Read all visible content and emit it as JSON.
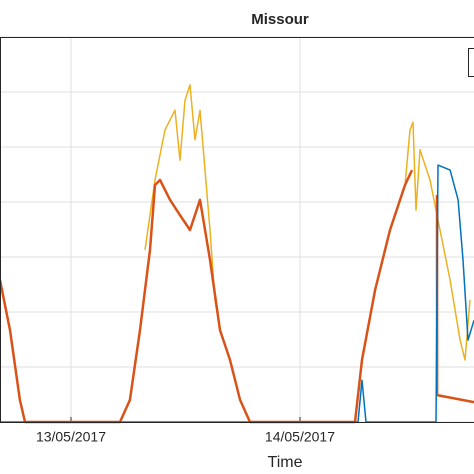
{
  "chart_data": {
    "type": "line",
    "title": "Missour",
    "x_label": "Time",
    "xlim": [
      -7.44,
      42.24
    ],
    "xticks": [
      {
        "value": 0,
        "label": "13/05/2017"
      },
      {
        "value": 24,
        "label": "14/05/2017"
      }
    ],
    "ylim": [
      0,
      7
    ],
    "yticks": [
      0,
      1,
      2,
      3,
      4,
      5,
      6,
      7
    ],
    "grid": true,
    "series": [
      {
        "color": "#edb120",
        "x": [
          7.76,
          8.81,
          9.85,
          10.9,
          11.43,
          11.95,
          12.47,
          13.0,
          13.52,
          14.05,
          14.57,
          15.09,
          15.62,
          25,
          35.01,
          35.53,
          35.85,
          36.16,
          36.58,
          37.63,
          38.68,
          39.73,
          40.78,
          41.3,
          41.82
        ],
        "values": [
          3.13,
          4.4,
          5.31,
          5.67,
          4.76,
          5.85,
          6.13,
          5.13,
          5.67,
          4.58,
          3.49,
          2.22,
          1.67,
          null,
          4.31,
          5.31,
          5.45,
          3.85,
          4.95,
          4.4,
          3.49,
          2.58,
          1.49,
          1.13,
          2.22
        ]
      },
      {
        "color": "#d95319",
        "x": [
          -7.44,
          -6.39,
          -5.35,
          -4.82,
          5.14,
          6.18,
          7.23,
          8.28,
          8.81,
          9.33,
          10.38,
          11.43,
          12.47,
          13.52,
          14.57,
          15.62,
          16.67,
          17.72,
          18.76,
          29.77,
          30.5,
          31.87,
          33.44,
          35.01,
          35.74,
          37,
          38.36,
          38.37,
          42.24
        ],
        "values": [
          2.58,
          1.67,
          0.4,
          0,
          0,
          0.4,
          1.67,
          3.13,
          4.31,
          4.4,
          4.04,
          3.76,
          3.49,
          4.04,
          2.95,
          1.67,
          1.13,
          0.4,
          0,
          0,
          1.13,
          2.4,
          3.49,
          4.31,
          4.58,
          null,
          4.13,
          0.49,
          0.36
        ]
      },
      {
        "color": "#0072bd",
        "x": [
          -7.44,
          30.08,
          30.5,
          30.92,
          38.26,
          38.47,
          39.73,
          40.57,
          41.09,
          41.61,
          42.24
        ],
        "values": [
          0,
          0,
          0.76,
          0,
          0,
          4.67,
          4.58,
          4.04,
          2.95,
          1.49,
          1.85
        ]
      }
    ]
  }
}
